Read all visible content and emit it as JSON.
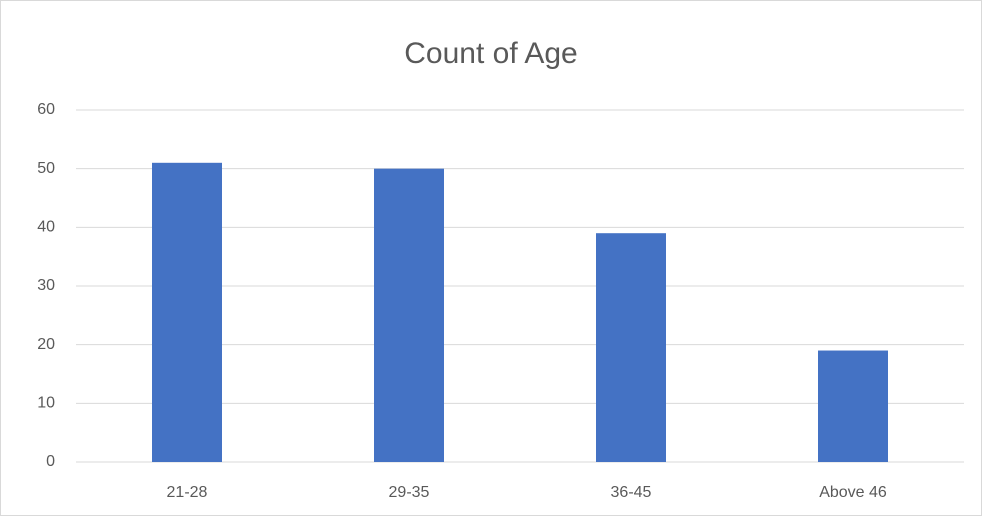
{
  "chart_data": {
    "type": "bar",
    "title": "Count of Age",
    "categories": [
      "21-28",
      "29-35",
      "36-45",
      "Above 46"
    ],
    "values": [
      51,
      50,
      39,
      19
    ],
    "color": "#4472c4",
    "ylim": [
      0,
      60
    ],
    "yticks": [
      0,
      10,
      20,
      30,
      40,
      50,
      60
    ],
    "grid": true
  }
}
